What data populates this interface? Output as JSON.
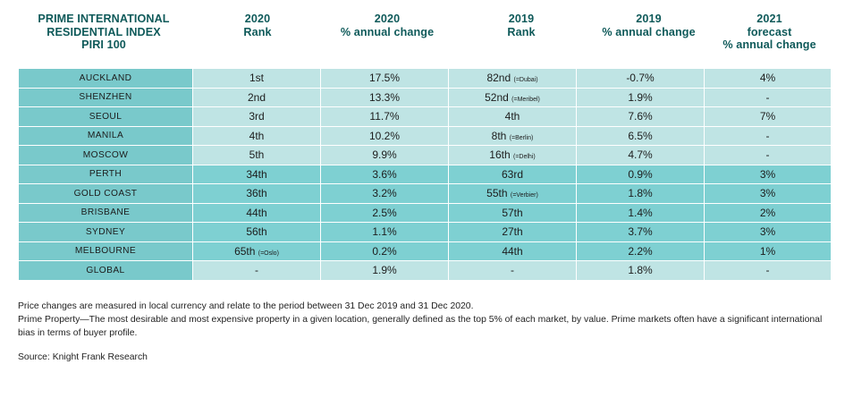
{
  "headers": {
    "col0": [
      "PRIME INTERNATIONAL",
      "RESIDENTIAL INDEX",
      "PIRI 100"
    ],
    "col1": [
      "2020",
      "Rank"
    ],
    "col2": [
      "2020",
      "% annual change"
    ],
    "col3": [
      "2019",
      "Rank"
    ],
    "col4": [
      "2019",
      "% annual change"
    ],
    "col5": [
      "2021",
      "forecast",
      "% annual change"
    ]
  },
  "rows": [
    {
      "city": "AUCKLAND",
      "rank2020": "1st",
      "change2020": "17.5%",
      "rank2019": "82nd",
      "rank2019_note": "(=Dubai)",
      "change2019": "-0.7%",
      "forecast2021": "4%"
    },
    {
      "city": "SHENZHEN",
      "rank2020": "2nd",
      "change2020": "13.3%",
      "rank2019": "52nd",
      "rank2019_note": "(=Meribel)",
      "change2019": "1.9%",
      "forecast2021": "-"
    },
    {
      "city": "SEOUL",
      "rank2020": "3rd",
      "change2020": "11.7%",
      "rank2019": "4th",
      "rank2019_note": "",
      "change2019": "7.6%",
      "forecast2021": "7%"
    },
    {
      "city": "MANILA",
      "rank2020": "4th",
      "change2020": "10.2%",
      "rank2019": "8th",
      "rank2019_note": "(=Berlin)",
      "change2019": "6.5%",
      "forecast2021": "-"
    },
    {
      "city": "MOSCOW",
      "rank2020": "5th",
      "change2020": "9.9%",
      "rank2019": "16th",
      "rank2019_note": "(=Delhi)",
      "change2019": "4.7%",
      "forecast2021": "-"
    },
    {
      "city": "PERTH",
      "rank2020": "34th",
      "change2020": "3.6%",
      "rank2019": "63rd",
      "rank2019_note": "",
      "change2019": "0.9%",
      "forecast2021": "3%"
    },
    {
      "city": "GOLD COAST",
      "rank2020": "36th",
      "change2020": "3.2%",
      "rank2019": "55th",
      "rank2019_note": "(=Verbier)",
      "change2019": "1.8%",
      "forecast2021": "3%"
    },
    {
      "city": "BRISBANE",
      "rank2020": "44th",
      "change2020": "2.5%",
      "rank2019": "57th",
      "rank2019_note": "",
      "change2019": "1.4%",
      "forecast2021": "2%"
    },
    {
      "city": "SYDNEY",
      "rank2020": "56th",
      "change2020": "1.1%",
      "rank2019": "27th",
      "rank2019_note": "",
      "change2019": "3.7%",
      "forecast2021": "3%"
    },
    {
      "city": "MELBOURNE",
      "rank2020": "65th",
      "rank2020_note": "(=Oslo)",
      "change2020": "0.2%",
      "rank2019": "44th",
      "rank2019_note": "",
      "change2019": "2.2%",
      "forecast2021": "1%"
    },
    {
      "city": "GLOBAL",
      "rank2020": "-",
      "change2020": "1.9%",
      "rank2019": "-",
      "rank2019_note": "",
      "change2019": "1.8%",
      "forecast2021": "-"
    }
  ],
  "row_shading": [
    "light",
    "light",
    "light",
    "light",
    "light",
    "dark",
    "dark",
    "dark",
    "dark",
    "dark",
    "light"
  ],
  "footnotes": {
    "line1": "Price changes are measured in local currency and relate to the period between 31 Dec 2019 and 31 Dec 2020.",
    "line2": "Prime Property—The most desirable and most expensive property in a given location, generally defined as the top 5% of each market, by value. Prime markets often have a significant international bias in terms of buyer profile.",
    "source": "Source: Knight Frank Research"
  },
  "colors": {
    "header_text": "#0f5a5a",
    "light_cell": "#bfe4e4",
    "dark_cell": "#7ed0d2",
    "city_cell": "#79c9cb"
  }
}
